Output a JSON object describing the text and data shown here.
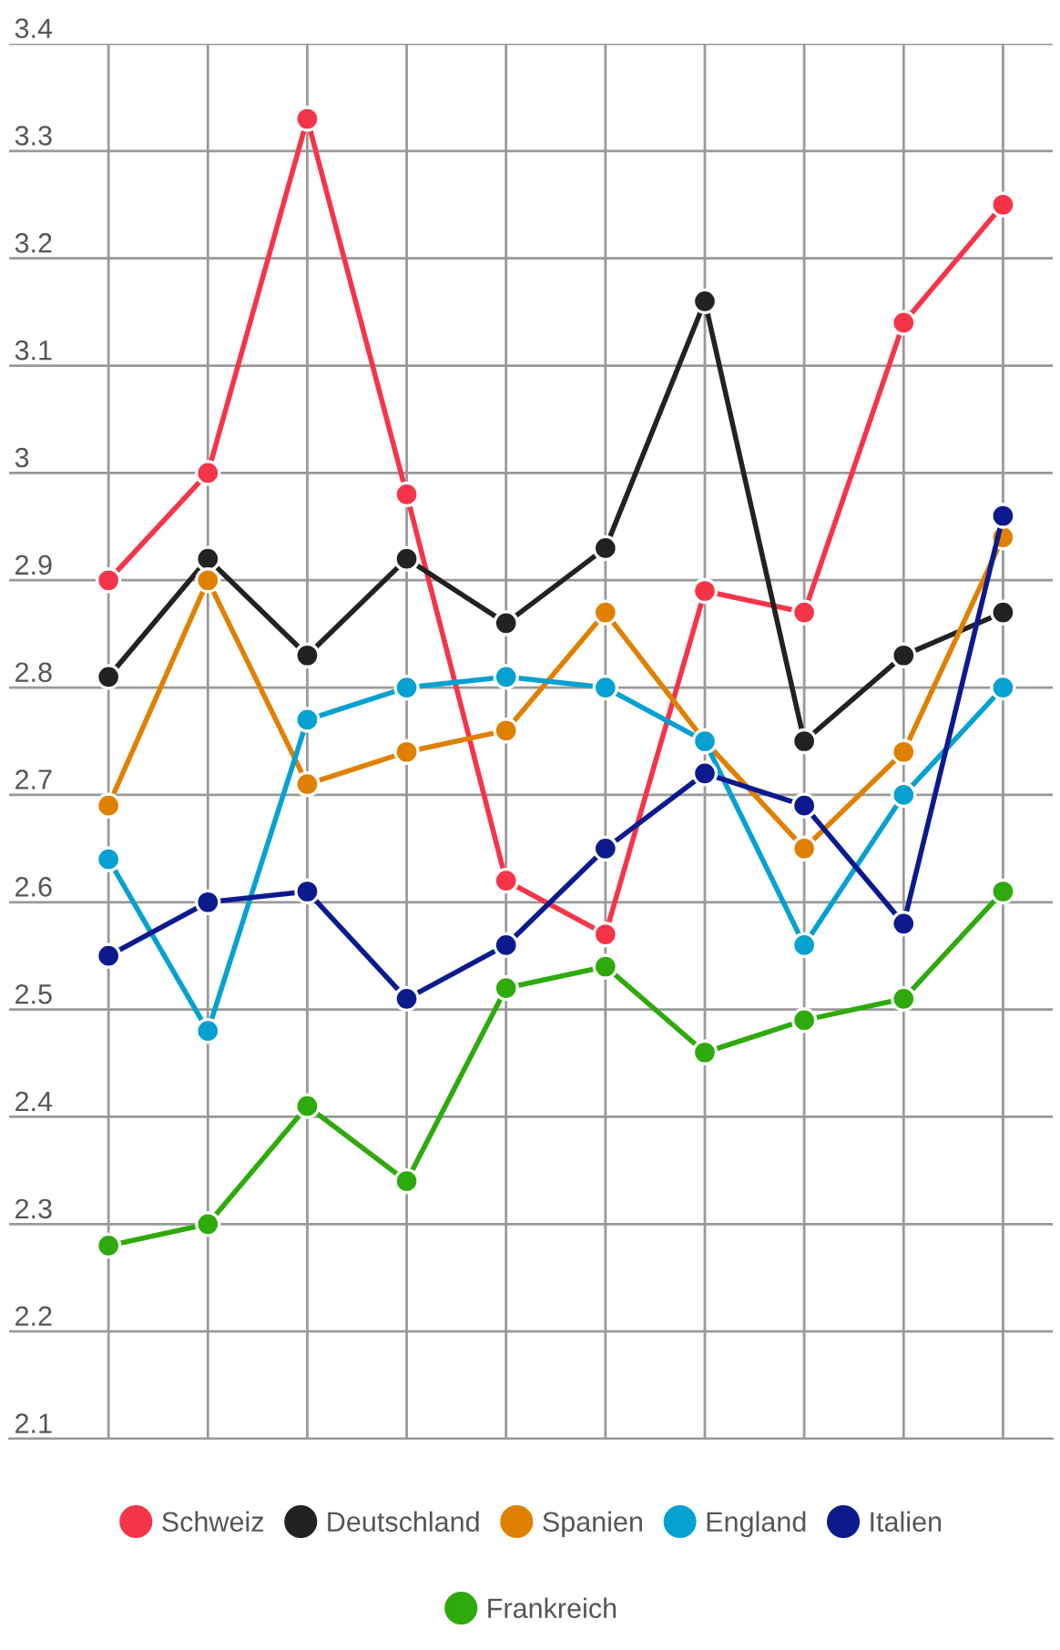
{
  "chart_data": {
    "type": "line",
    "categories": [
      null,
      null,
      null,
      null,
      null,
      null,
      null,
      null,
      null,
      null
    ],
    "ylim": [
      2.1,
      3.4
    ],
    "yticks": [
      2.1,
      2.2,
      2.3,
      2.4,
      2.5,
      2.6,
      2.7,
      2.8,
      2.9,
      3,
      3.1,
      3.2,
      3.3,
      3.4
    ],
    "grid": true,
    "legend": "bottom",
    "marker": "circle",
    "line_style": "solid",
    "series": [
      {
        "name": "Schweiz",
        "color": "#f5344a",
        "values": [
          2.9,
          3.0,
          3.33,
          2.98,
          2.62,
          2.57,
          2.89,
          2.87,
          3.14,
          3.25
        ]
      },
      {
        "name": "Deutschland",
        "color": "#222222",
        "values": [
          2.81,
          2.92,
          2.83,
          2.92,
          2.86,
          2.93,
          3.16,
          2.75,
          2.83,
          2.87
        ]
      },
      {
        "name": "Spanien",
        "color": "#e08000",
        "values": [
          2.69,
          2.9,
          2.71,
          2.74,
          2.76,
          2.87,
          2.75,
          2.65,
          2.74,
          2.94
        ]
      },
      {
        "name": "England",
        "color": "#05a1d1",
        "values": [
          2.64,
          2.48,
          2.77,
          2.8,
          2.81,
          2.8,
          2.75,
          2.56,
          2.7,
          2.8
        ]
      },
      {
        "name": "Italien",
        "color": "#0c1a8e",
        "values": [
          2.55,
          2.6,
          2.61,
          2.51,
          2.56,
          2.65,
          2.72,
          2.69,
          2.58,
          2.96
        ]
      },
      {
        "name": "Frankreich",
        "color": "#2eaa0c",
        "values": [
          2.28,
          2.3,
          2.41,
          2.34,
          2.52,
          2.54,
          2.46,
          2.49,
          2.51,
          2.61
        ]
      }
    ]
  }
}
